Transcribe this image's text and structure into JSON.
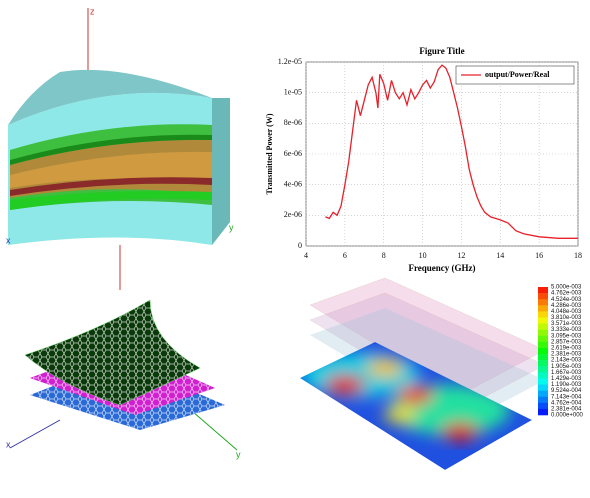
{
  "chart_data": {
    "type": "line",
    "title": "Figure Title",
    "xlabel": "Frequency (GHz)",
    "ylabel": "Transmitted Power (W)",
    "x": [
      5.0,
      5.2,
      5.4,
      5.6,
      5.8,
      6.0,
      6.2,
      6.4,
      6.6,
      6.8,
      7.0,
      7.2,
      7.4,
      7.6,
      7.7,
      7.8,
      8.0,
      8.2,
      8.4,
      8.6,
      8.8,
      9.0,
      9.2,
      9.4,
      9.6,
      9.8,
      10.0,
      10.2,
      10.4,
      10.6,
      10.8,
      11.0,
      11.2,
      11.4,
      11.6,
      11.8,
      12.0,
      12.2,
      12.4,
      12.6,
      12.8,
      13.0,
      13.2,
      13.5,
      14.0,
      14.4,
      14.8,
      15.2,
      16.0,
      17.0,
      18.0
    ],
    "series": [
      {
        "name": "output/Power/Real",
        "color": "#e8202a",
        "values": [
          1.9e-06,
          1.8e-06,
          2.2e-06,
          2e-06,
          2.6e-06,
          4e-06,
          5.5e-06,
          7.5e-06,
          9.5e-06,
          8.5e-06,
          9.5e-06,
          1.05e-05,
          1.1e-05,
          1e-05,
          9e-06,
          1.12e-05,
          1.06e-05,
          9.5e-06,
          1.08e-05,
          1e-05,
          9.6e-06,
          1e-05,
          9.2e-06,
          1.02e-05,
          9.6e-06,
          1e-05,
          1.05e-05,
          1.08e-05,
          1.03e-05,
          1.07e-05,
          1.15e-05,
          1.18e-05,
          1.16e-05,
          1.1e-05,
          1e-05,
          9e-06,
          7.8e-06,
          6.5e-06,
          5e-06,
          4e-06,
          3.2e-06,
          2.6e-06,
          2.2e-06,
          1.9e-06,
          1.7e-06,
          1.5e-06,
          1e-06,
          8e-07,
          6e-07,
          5e-07,
          5e-07
        ]
      }
    ],
    "xlim": [
      4,
      18
    ],
    "xticks": [
      4,
      6,
      8,
      10,
      12,
      14,
      16,
      18
    ],
    "ylim": [
      0,
      1.2e-05
    ],
    "yticks": [
      0,
      {
        "value": 2e-06,
        "label": "2e-06"
      },
      {
        "value": 4e-06,
        "label": "4e-06"
      },
      {
        "value": 6e-06,
        "label": "6e-06"
      },
      {
        "value": 8e-06,
        "label": "8e-06"
      },
      {
        "value": 1e-05,
        "label": "1e-05"
      },
      {
        "value": 1.2e-05,
        "label": "1.2e-05"
      }
    ],
    "grid": true,
    "legend": "upper right"
  },
  "colorbar": {
    "labels": [
      "5.000e-003",
      "4.762e-003",
      "4.524e-003",
      "4.286e-003",
      "4.048e-003",
      "3.810e-003",
      "3.571e-003",
      "3.333e-003",
      "3.095e-003",
      "2.857e-003",
      "2.619e-003",
      "2.381e-003",
      "2.143e-003",
      "1.905e-003",
      "1.667e-003",
      "1.429e-003",
      "1.190e-003",
      "9.524e-004",
      "7.143e-004",
      "4.762e-004",
      "2.381e-004",
      "0.000e+000"
    ]
  },
  "axis_labels": {
    "top": [
      "z",
      "x",
      "y"
    ],
    "bottom": [
      "x",
      "y"
    ]
  }
}
